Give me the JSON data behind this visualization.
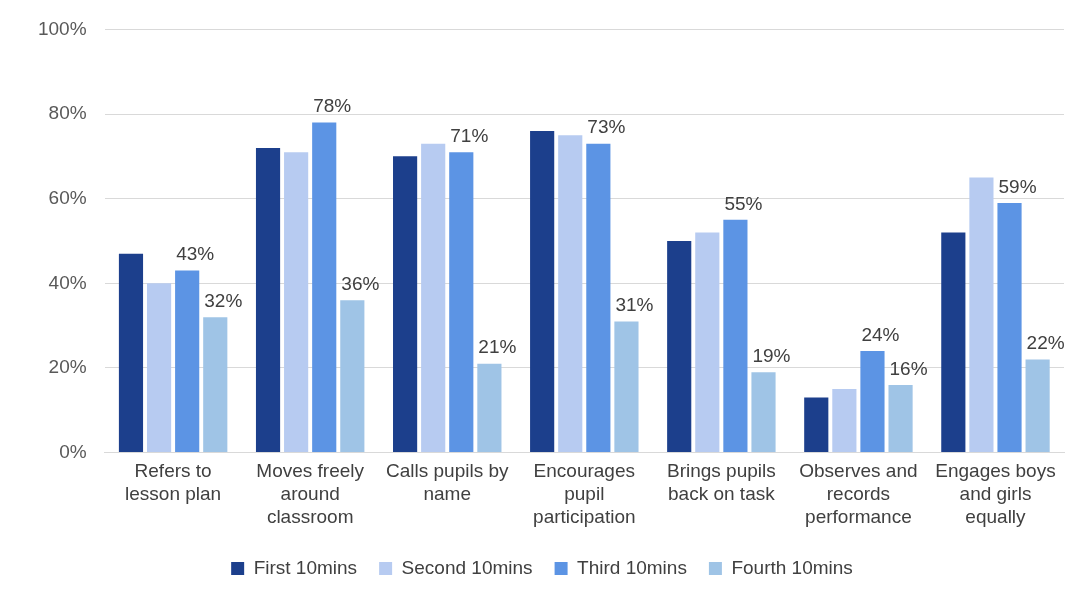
{
  "chart_data": {
    "type": "bar",
    "categories": [
      "Refers to lesson plan",
      "Moves freely around classroom",
      "Calls pupils by name",
      "Encourages pupil participation",
      "Brings pupils back on task",
      "Observes and records performance",
      "Engages boys and girls equally"
    ],
    "series": [
      {
        "name": "First 10mins",
        "color": "#1c3f8c",
        "values": [
          47,
          72,
          70,
          76,
          50,
          13,
          52
        ]
      },
      {
        "name": "Second 10mins",
        "color": "#b7cbf1",
        "values": [
          40,
          71,
          73,
          75,
          52,
          15,
          65
        ]
      },
      {
        "name": "Third 10mins",
        "color": "#5c94e4",
        "values": [
          43,
          78,
          71,
          73,
          55,
          24,
          59
        ],
        "value_labels": [
          "43%",
          "78%",
          "71%",
          "73%",
          "55%",
          "24%",
          "59%"
        ]
      },
      {
        "name": "Fourth 10mins",
        "color": "#9fc4e6",
        "values": [
          32,
          36,
          21,
          31,
          19,
          16,
          22
        ],
        "value_labels": [
          "32%",
          "36%",
          "21%",
          "31%",
          "19%",
          "16%",
          "22%"
        ]
      }
    ],
    "ylim": [
      0,
      100
    ],
    "yticks": [
      {
        "value": 0,
        "label": "0%"
      },
      {
        "value": 20,
        "label": "20%"
      },
      {
        "value": 40,
        "label": "40%"
      },
      {
        "value": 60,
        "label": "60%"
      },
      {
        "value": 80,
        "label": "80%"
      },
      {
        "value": 100,
        "label": "100%"
      }
    ],
    "grid": "y",
    "legend": "bottom"
  }
}
